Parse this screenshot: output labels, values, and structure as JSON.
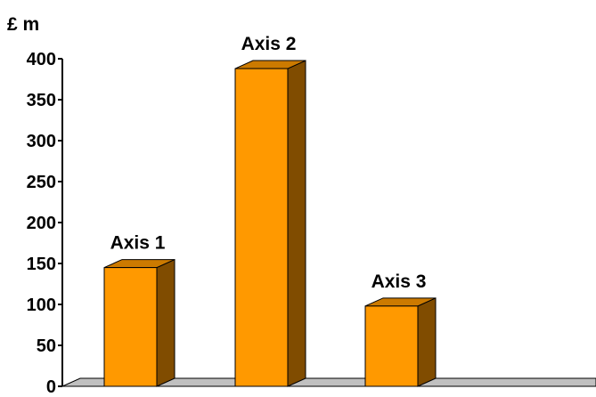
{
  "chart_data": {
    "type": "bar",
    "categories": [
      "Axis 1",
      "Axis 2",
      "Axis 3"
    ],
    "values": [
      145,
      388,
      98
    ],
    "ylabel": "£ m",
    "ylim": [
      0,
      400
    ],
    "yticks": [
      "0",
      "50",
      "100",
      "150",
      "200",
      "250",
      "300",
      "350",
      "400"
    ],
    "grid": false,
    "legend": "none"
  },
  "colors": {
    "bar_front": "#ff9900",
    "bar_top": "#cc7a00",
    "bar_side": "#804c00",
    "floor": "#c0c0c0",
    "axis": "#000000"
  }
}
